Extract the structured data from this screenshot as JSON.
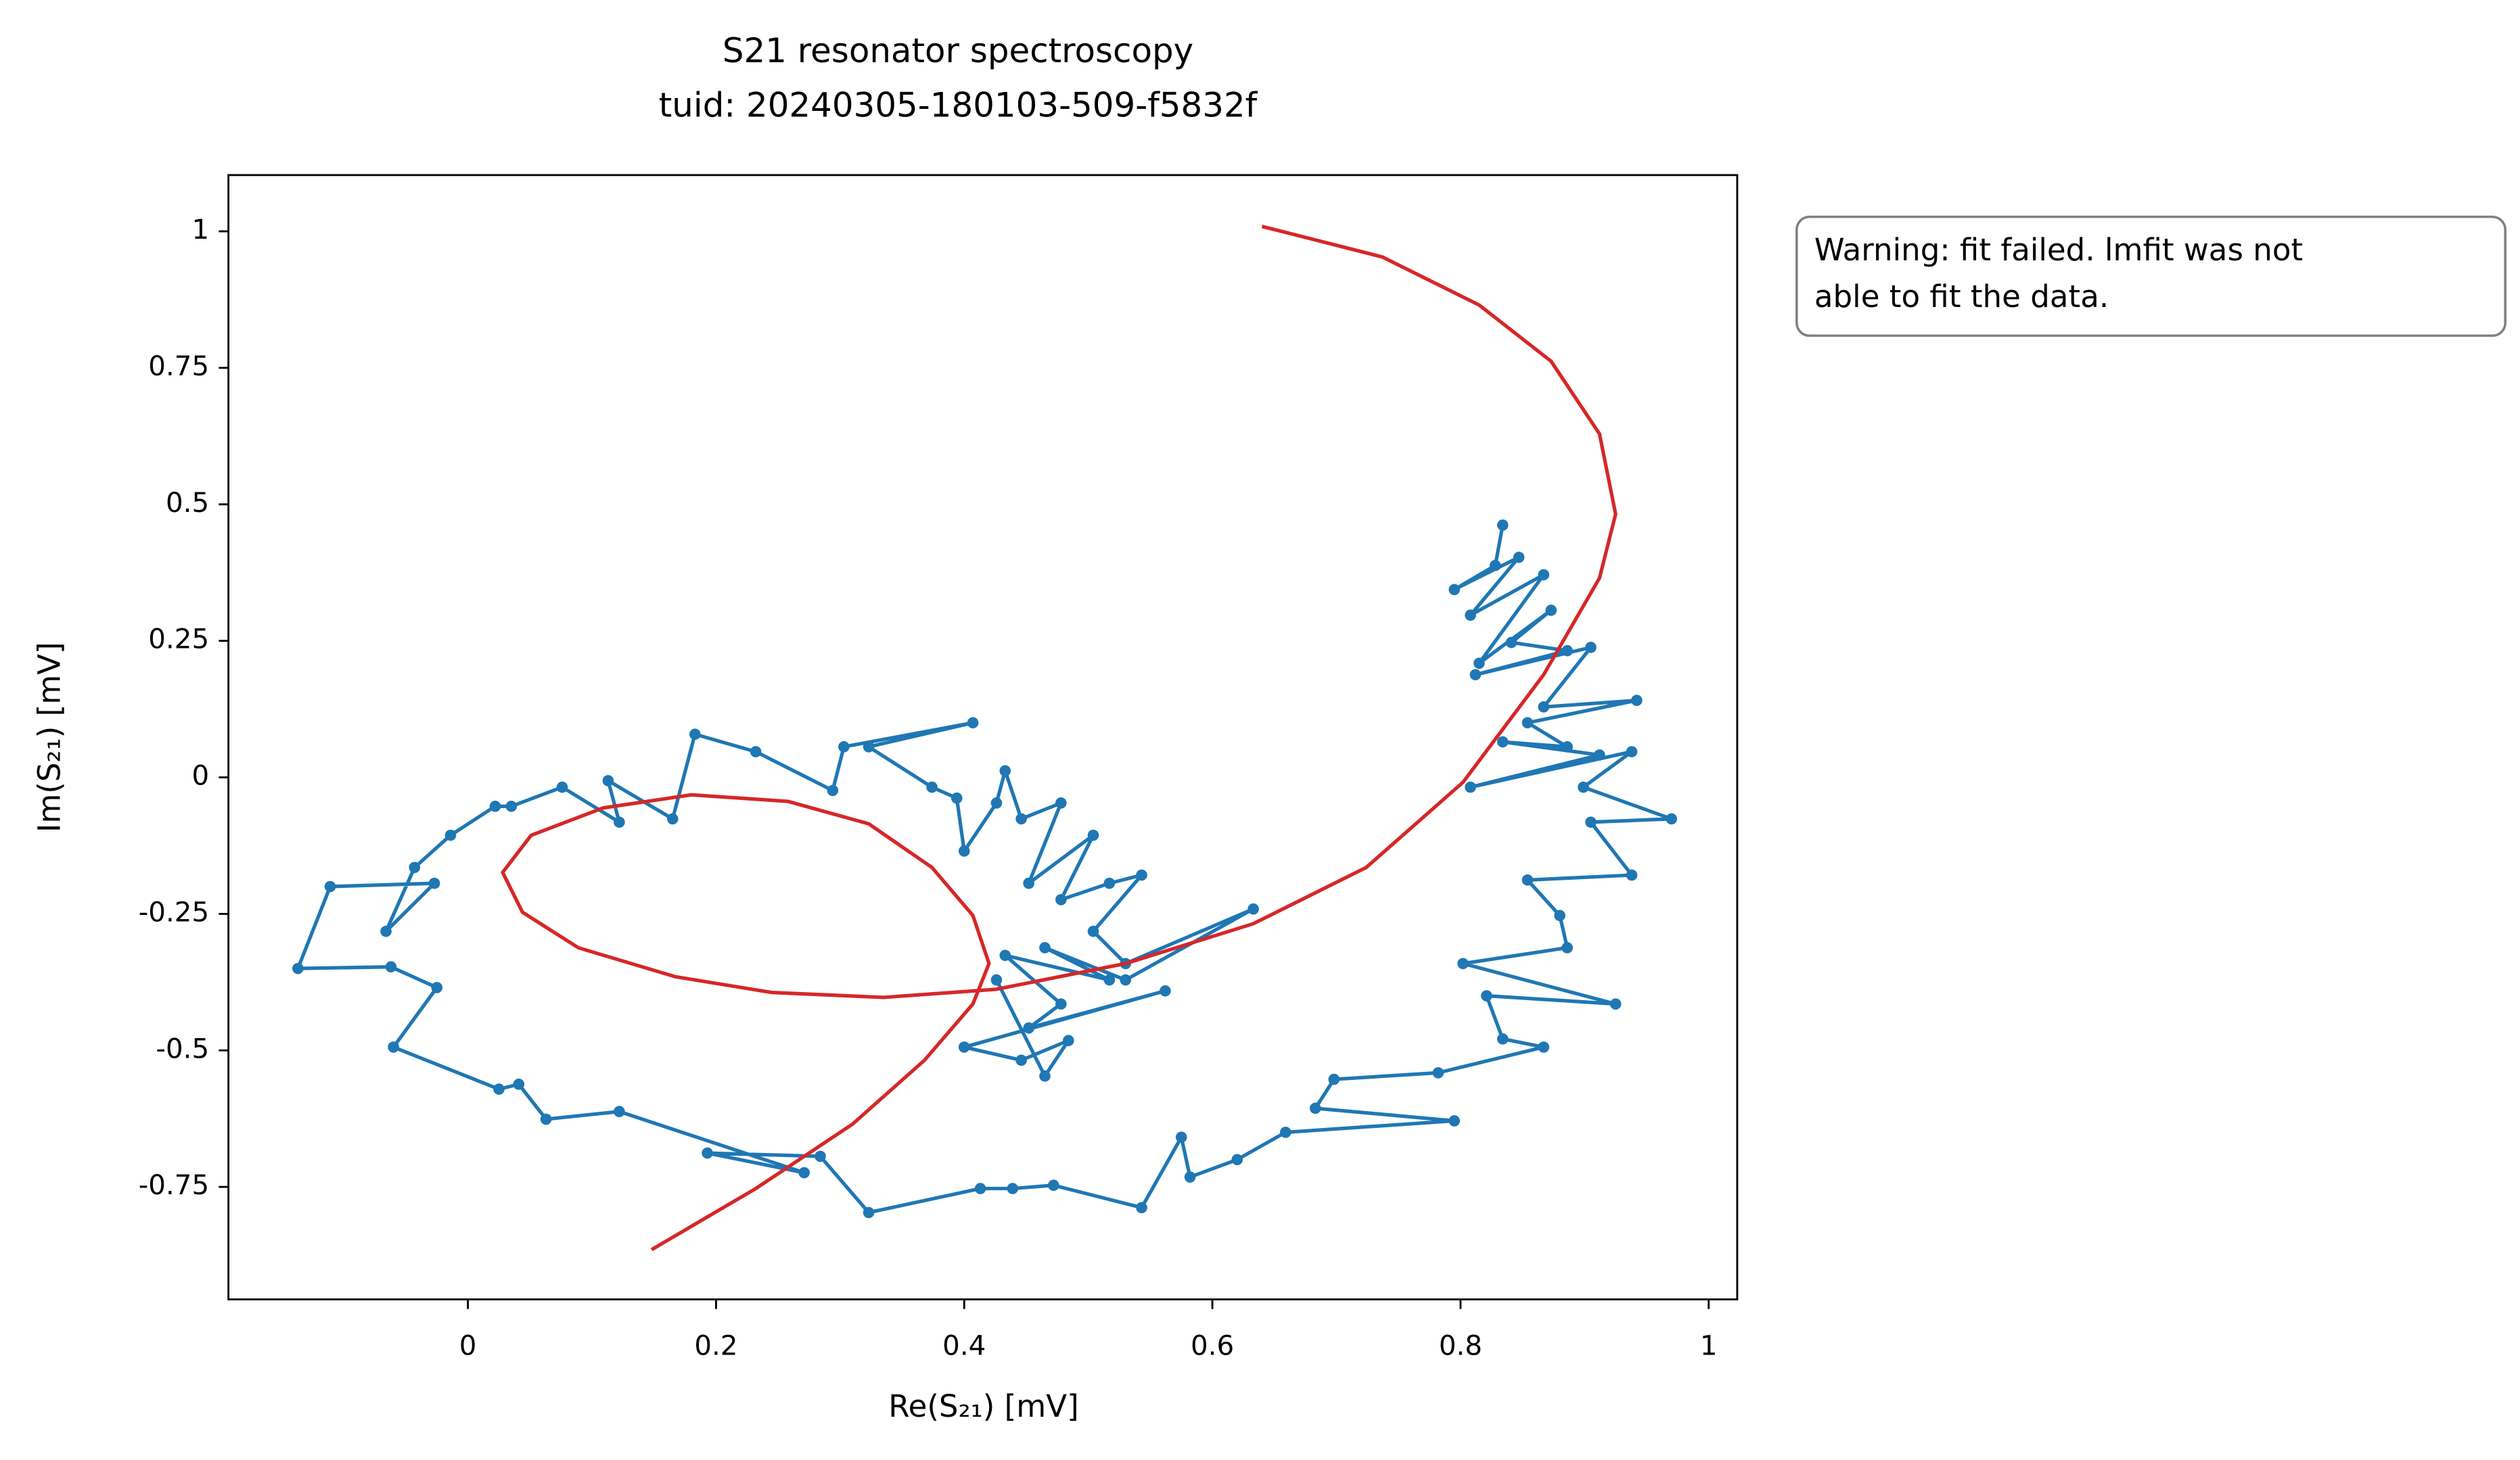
{
  "chart_data": {
    "type": "line",
    "title": "S21 resonator spectroscopy",
    "subtitle": "tuid: 20240305-180103-509-f5832f",
    "xlabel": "Re(S₂₁) [mV]",
    "ylabel": "Im(S₂₁) [mV]",
    "xlim": [
      -0.193,
      1.023
    ],
    "ylim": [
      -0.956,
      1.103
    ],
    "xticks": [
      0,
      0.2,
      0.4,
      0.6,
      0.8,
      1
    ],
    "yticks": [
      -0.75,
      -0.5,
      -0.25,
      0,
      0.25,
      0.5,
      0.75,
      1
    ],
    "annotation": [
      "Warning: fit failed. lmfit was not",
      "able to fit the data."
    ],
    "series": [
      {
        "color": "#1f77b4",
        "marker": true,
        "x": [
          0.834,
          0.828,
          0.795,
          0.847,
          0.808,
          0.867,
          0.815,
          0.873,
          0.841,
          0.886,
          0.812,
          0.905,
          0.867,
          0.942,
          0.854,
          0.886,
          0.834,
          0.912,
          0.808,
          0.938,
          0.899,
          0.97,
          0.905,
          0.938,
          0.854,
          0.88,
          0.886,
          0.802,
          0.925,
          0.821,
          0.834,
          0.867,
          0.782,
          0.698,
          0.683,
          0.795,
          0.659,
          0.62,
          0.582,
          0.575,
          0.543,
          0.472,
          0.439,
          0.413,
          0.323,
          0.284,
          0.193,
          0.271,
          0.122,
          0.063,
          0.041,
          0.025,
          -0.06,
          -0.025,
          -0.062,
          -0.137,
          -0.111,
          -0.027,
          -0.066,
          -0.043,
          -0.014,
          0.022,
          0.035,
          0.076,
          0.122,
          0.113,
          0.165,
          0.183,
          0.232,
          0.294,
          0.303,
          0.407,
          0.323,
          0.374,
          0.394,
          0.4,
          0.426,
          0.433,
          0.446,
          0.478,
          0.452,
          0.504,
          0.478,
          0.517,
          0.543,
          0.504,
          0.53,
          0.633,
          0.53,
          0.465,
          0.517,
          0.433,
          0.478,
          0.452,
          0.562,
          0.4,
          0.446,
          0.484,
          0.465,
          0.426
        ],
        "values": [
          0.462,
          0.388,
          0.344,
          0.403,
          0.297,
          0.371,
          0.209,
          0.306,
          0.247,
          0.232,
          0.188,
          0.238,
          0.129,
          0.141,
          0.1,
          0.056,
          0.065,
          0.041,
          -0.018,
          0.047,
          -0.018,
          -0.076,
          -0.082,
          -0.179,
          -0.188,
          -0.253,
          -0.312,
          -0.341,
          -0.415,
          -0.4,
          -0.479,
          -0.494,
          -0.541,
          -0.553,
          -0.606,
          -0.629,
          -0.65,
          -0.7,
          -0.732,
          -0.659,
          -0.788,
          -0.747,
          -0.753,
          -0.753,
          -0.797,
          -0.694,
          -0.688,
          -0.724,
          -0.612,
          -0.626,
          -0.562,
          -0.571,
          -0.494,
          -0.385,
          -0.347,
          -0.35,
          -0.2,
          -0.194,
          -0.282,
          -0.165,
          -0.106,
          -0.053,
          -0.053,
          -0.018,
          -0.082,
          -0.006,
          -0.076,
          0.079,
          0.047,
          -0.024,
          0.056,
          0.1,
          0.056,
          -0.018,
          -0.038,
          -0.135,
          -0.047,
          0.012,
          -0.076,
          -0.047,
          -0.194,
          -0.106,
          -0.224,
          -0.194,
          -0.179,
          -0.282,
          -0.341,
          -0.241,
          -0.371,
          -0.312,
          -0.371,
          -0.326,
          -0.415,
          -0.459,
          -0.391,
          -0.494,
          -0.518,
          -0.482,
          -0.547,
          -0.371
        ]
      },
      {
        "color": "#d62728",
        "marker": false,
        "x": [
          0.148,
          0.232,
          0.31,
          0.368,
          0.407,
          0.42,
          0.407,
          0.374,
          0.323,
          0.258,
          0.18,
          0.109,
          0.051,
          0.028,
          0.044,
          0.089,
          0.167,
          0.245,
          0.335,
          0.426,
          0.53,
          0.633,
          0.724,
          0.802,
          0.867,
          0.912,
          0.925,
          0.912,
          0.873,
          0.815,
          0.737,
          0.64
        ],
        "values": [
          -0.865,
          -0.753,
          -0.635,
          -0.518,
          -0.415,
          -0.341,
          -0.253,
          -0.165,
          -0.085,
          -0.044,
          -0.032,
          -0.056,
          -0.106,
          -0.174,
          -0.247,
          -0.312,
          -0.365,
          -0.394,
          -0.403,
          -0.388,
          -0.341,
          -0.268,
          -0.165,
          -0.009,
          0.188,
          0.365,
          0.482,
          0.629,
          0.762,
          0.865,
          0.953,
          1.009
        ]
      }
    ]
  }
}
